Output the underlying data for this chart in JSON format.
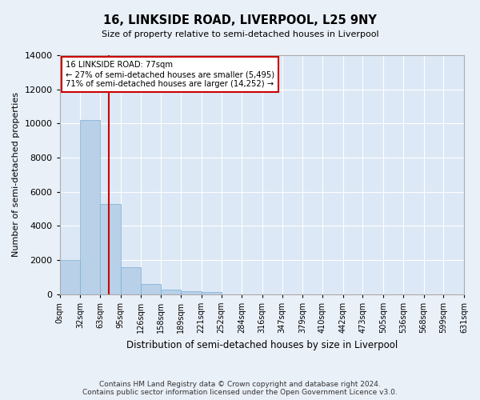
{
  "title": "16, LINKSIDE ROAD, LIVERPOOL, L25 9NY",
  "subtitle": "Size of property relative to semi-detached houses in Liverpool",
  "xlabel": "Distribution of semi-detached houses by size in Liverpool",
  "ylabel": "Number of semi-detached properties",
  "footer_line1": "Contains HM Land Registry data © Crown copyright and database right 2024.",
  "footer_line2": "Contains public sector information licensed under the Open Government Licence v3.0.",
  "bin_edges": [
    0,
    32,
    63,
    95,
    126,
    158,
    189,
    221,
    252,
    284,
    316,
    347,
    379,
    410,
    442,
    473,
    505,
    536,
    568,
    599,
    631
  ],
  "bar_heights": [
    2000,
    10200,
    5300,
    1600,
    600,
    250,
    150,
    130,
    0,
    0,
    0,
    0,
    0,
    0,
    0,
    0,
    0,
    0,
    0,
    0
  ],
  "bar_color": "#b8d0e8",
  "bar_edge_color": "#7aafd4",
  "property_size": 77,
  "annotation_text_line1": "16 LINKSIDE ROAD: 77sqm",
  "annotation_text_line2": "← 27% of semi-detached houses are smaller (5,495)",
  "annotation_text_line3": "71% of semi-detached houses are larger (14,252) →",
  "vline_color": "#cc0000",
  "annotation_box_color": "#ffffff",
  "annotation_box_edge": "#cc0000",
  "ylim": [
    0,
    14000
  ],
  "yticks": [
    0,
    2000,
    4000,
    6000,
    8000,
    10000,
    12000,
    14000
  ],
  "bg_color": "#dce8f5",
  "fig_bg_color": "#eaf0f8",
  "grid_color": "#ffffff"
}
